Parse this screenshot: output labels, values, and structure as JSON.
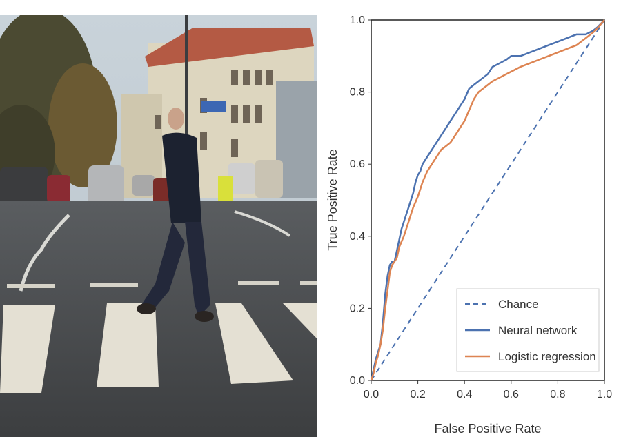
{
  "photo": {
    "description_icon": "pedestrian-crossing-street-photo"
  },
  "chart_data": {
    "type": "line",
    "title": "",
    "xlabel": "False Positive Rate",
    "ylabel": "True Positive Rate",
    "xlim": [
      0,
      1
    ],
    "ylim": [
      0,
      1
    ],
    "xticks": [
      "0.0",
      "0.2",
      "0.4",
      "0.6",
      "0.8",
      "1.0"
    ],
    "yticks": [
      "0.0",
      "0.2",
      "0.4",
      "0.6",
      "0.8",
      "1.0"
    ],
    "grid": false,
    "legend_position": "bottom-right",
    "series": [
      {
        "name": "Chance",
        "style": "dashed",
        "color": "#4c72b0",
        "x": [
          0,
          1
        ],
        "y": [
          0,
          1
        ]
      },
      {
        "name": "Neural network",
        "style": "solid",
        "color": "#4c72b0",
        "x": [
          0,
          0.01,
          0.02,
          0.03,
          0.04,
          0.05,
          0.06,
          0.07,
          0.08,
          0.09,
          0.1,
          0.11,
          0.12,
          0.13,
          0.14,
          0.15,
          0.16,
          0.17,
          0.18,
          0.19,
          0.2,
          0.21,
          0.22,
          0.24,
          0.26,
          0.28,
          0.3,
          0.32,
          0.34,
          0.36,
          0.38,
          0.4,
          0.42,
          0.44,
          0.46,
          0.48,
          0.5,
          0.52,
          0.55,
          0.58,
          0.6,
          0.64,
          0.68,
          0.72,
          0.76,
          0.8,
          0.84,
          0.88,
          0.92,
          0.95,
          0.97,
          1.0
        ],
        "y": [
          0,
          0.03,
          0.06,
          0.08,
          0.1,
          0.16,
          0.24,
          0.29,
          0.32,
          0.33,
          0.33,
          0.36,
          0.39,
          0.42,
          0.44,
          0.46,
          0.48,
          0.5,
          0.52,
          0.55,
          0.57,
          0.58,
          0.6,
          0.62,
          0.64,
          0.66,
          0.68,
          0.7,
          0.72,
          0.74,
          0.76,
          0.78,
          0.81,
          0.82,
          0.83,
          0.84,
          0.85,
          0.87,
          0.88,
          0.89,
          0.9,
          0.9,
          0.91,
          0.92,
          0.93,
          0.94,
          0.95,
          0.96,
          0.96,
          0.97,
          0.98,
          1.0
        ]
      },
      {
        "name": "Logistic regression",
        "style": "solid",
        "color": "#dd8452",
        "x": [
          0,
          0.01,
          0.02,
          0.03,
          0.04,
          0.05,
          0.06,
          0.07,
          0.08,
          0.09,
          0.1,
          0.11,
          0.12,
          0.14,
          0.16,
          0.18,
          0.2,
          0.22,
          0.24,
          0.26,
          0.28,
          0.3,
          0.32,
          0.34,
          0.36,
          0.38,
          0.4,
          0.42,
          0.44,
          0.46,
          0.48,
          0.5,
          0.52,
          0.55,
          0.58,
          0.61,
          0.64,
          0.68,
          0.72,
          0.76,
          0.8,
          0.84,
          0.88,
          0.92,
          0.96,
          1.0
        ],
        "y": [
          0,
          0.02,
          0.05,
          0.07,
          0.1,
          0.14,
          0.2,
          0.25,
          0.3,
          0.32,
          0.33,
          0.34,
          0.37,
          0.4,
          0.44,
          0.48,
          0.51,
          0.55,
          0.58,
          0.6,
          0.62,
          0.64,
          0.65,
          0.66,
          0.68,
          0.7,
          0.72,
          0.75,
          0.78,
          0.8,
          0.81,
          0.82,
          0.83,
          0.84,
          0.85,
          0.86,
          0.87,
          0.88,
          0.89,
          0.9,
          0.91,
          0.92,
          0.93,
          0.95,
          0.97,
          1.0
        ]
      }
    ]
  }
}
